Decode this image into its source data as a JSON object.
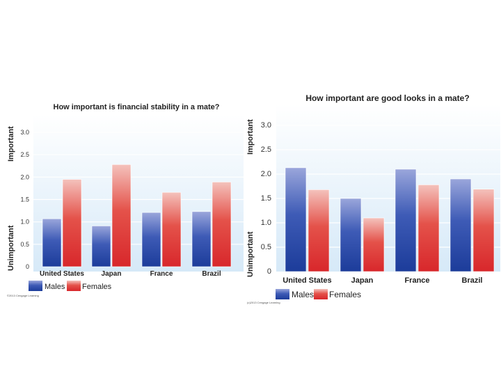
{
  "chart_data": [
    {
      "type": "bar",
      "title": "How important is financial stability in a mate?",
      "categories": [
        "United States",
        "Japan",
        "France",
        "Brazil"
      ],
      "series": [
        {
          "name": "Males",
          "values": [
            1.07,
            0.91,
            1.21,
            1.23
          ]
        },
        {
          "name": "Females",
          "values": [
            1.95,
            2.28,
            1.66,
            1.89
          ]
        }
      ],
      "ylim": [
        0,
        3.0
      ],
      "yticks": [
        "0",
        "0.5",
        "1.0",
        "1.5",
        "2.0",
        "2.5",
        "3.0"
      ],
      "ylabel_top": "Important",
      "ylabel_bottom": "Unimportant",
      "grid": true,
      "legend_position": "bottom-left",
      "credit": "©2013 Cengage Learning"
    },
    {
      "type": "bar",
      "title": "How important are good looks in a mate?",
      "categories": [
        "United States",
        "Japan",
        "France",
        "Brazil"
      ],
      "series": [
        {
          "name": "Males",
          "values": [
            2.13,
            1.5,
            2.1,
            1.9
          ]
        },
        {
          "name": "Females",
          "values": [
            1.68,
            1.1,
            1.78,
            1.69
          ]
        }
      ],
      "ylim": [
        0,
        3.0
      ],
      "yticks": [
        "0",
        "0.5",
        "1.0",
        "1.5",
        "2.0",
        "2.5",
        "3.0"
      ],
      "ylabel_top": "Important",
      "ylabel_bottom": "Unimportant",
      "grid": true,
      "legend_position": "bottom-left",
      "credit": "(c)2013 Cengage Learning"
    }
  ],
  "colors": {
    "males_top": "#9aa6db",
    "males_bottom": "#1c3c9a",
    "females_top": "#f4c2bc",
    "females_bottom": "#d8272b",
    "panel_top": "#ffffff",
    "panel_bottom": "#d6e9f8",
    "grid": "#ffffff",
    "text": "#222222"
  }
}
